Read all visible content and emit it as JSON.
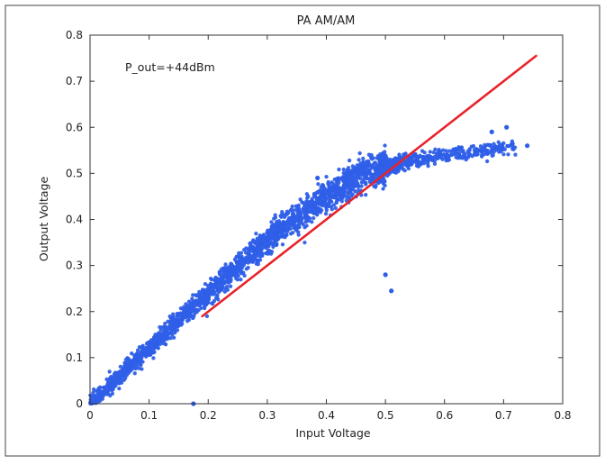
{
  "chart_data": {
    "type": "scatter",
    "title": "PA AM/AM",
    "xlabel": "Input Voltage",
    "ylabel": "Output Voltage",
    "annotation": "P_out=+44dBm",
    "xlim": [
      0,
      0.8
    ],
    "ylim": [
      0,
      0.8
    ],
    "x_ticks": [
      "0",
      "0.1",
      "0.2",
      "0.3",
      "0.4",
      "0.5",
      "0.6",
      "0.7",
      "0.8"
    ],
    "y_ticks": [
      "0",
      "0.1",
      "0.2",
      "0.3",
      "0.4",
      "0.5",
      "0.6",
      "0.7",
      "0.8"
    ],
    "grid": false,
    "colors": {
      "measured": "#2f5fe8",
      "linear": "#e8232a"
    },
    "linear_reference": {
      "x": [
        0.19,
        0.755
      ],
      "y": [
        0.19,
        0.755
      ]
    },
    "measured_trend": {
      "x": [
        0.0,
        0.05,
        0.1,
        0.15,
        0.2,
        0.25,
        0.3,
        0.35,
        0.4,
        0.45,
        0.5,
        0.55,
        0.6,
        0.65,
        0.7
      ],
      "y": [
        0.0,
        0.06,
        0.12,
        0.18,
        0.24,
        0.3,
        0.355,
        0.405,
        0.45,
        0.49,
        0.515,
        0.53,
        0.54,
        0.545,
        0.555
      ]
    },
    "outliers": {
      "x": [
        0.175,
        0.5,
        0.51,
        0.385,
        0.68,
        0.705,
        0.74
      ],
      "y": [
        0.0,
        0.28,
        0.245,
        0.49,
        0.59,
        0.6,
        0.56
      ]
    }
  }
}
